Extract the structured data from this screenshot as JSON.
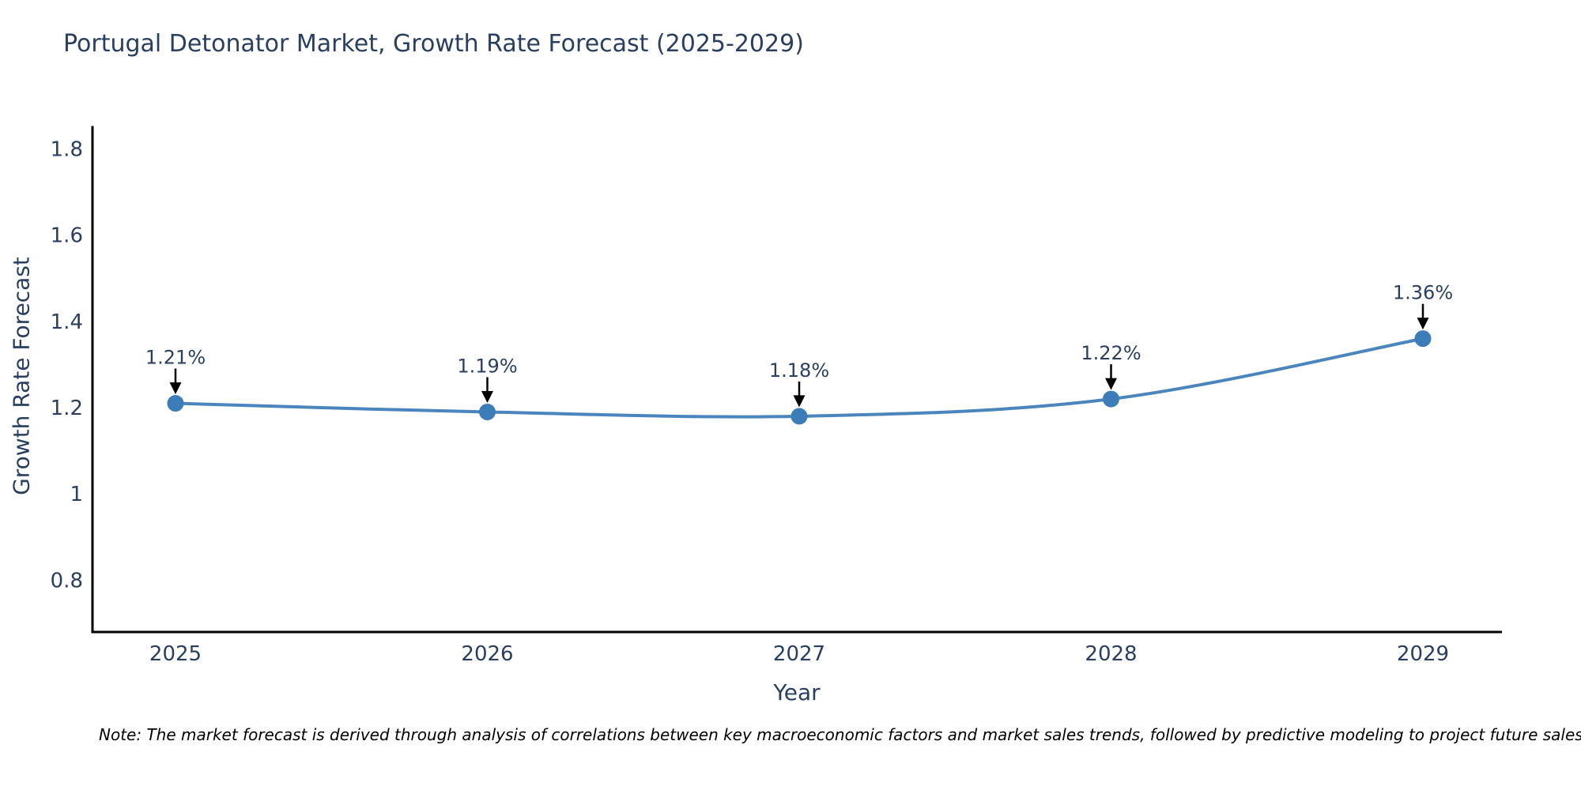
{
  "title": "Portugal Detonator Market, Growth Rate Forecast (2025-2029)",
  "note": "Note: The market forecast is derived through analysis of correlations between key macroeconomic factors and market sales trends, followed by predictive modeling to project future sales.",
  "chart_data": {
    "type": "line",
    "title": "Portugal Detonator Market, Growth Rate Forecast (2025-2029)",
    "xlabel": "Year",
    "ylabel": "Growth Rate Forecast",
    "categories": [
      "2025",
      "2026",
      "2027",
      "2028",
      "2029"
    ],
    "values": [
      1.21,
      1.19,
      1.18,
      1.22,
      1.36
    ],
    "point_labels": [
      "1.21%",
      "1.19%",
      "1.18%",
      "1.22%",
      "1.36%"
    ],
    "yticks": [
      0.8,
      1,
      1.2,
      1.4,
      1.6,
      1.8
    ],
    "ytick_labels": [
      "0.8",
      "1",
      "1.2",
      "1.4",
      "1.6",
      "1.8"
    ],
    "ylim": [
      0.68,
      1.85
    ],
    "grid": false,
    "legend": "none",
    "line_shape": "spline",
    "annotations": "arrow-down-to-point",
    "colors": {
      "line": "#4a86bd",
      "marker": "#3c7cb8",
      "text": "#2a3f5f",
      "axis": "#000000",
      "arrow": "#000000",
      "note": "#000000",
      "background": "#ffffff"
    }
  }
}
